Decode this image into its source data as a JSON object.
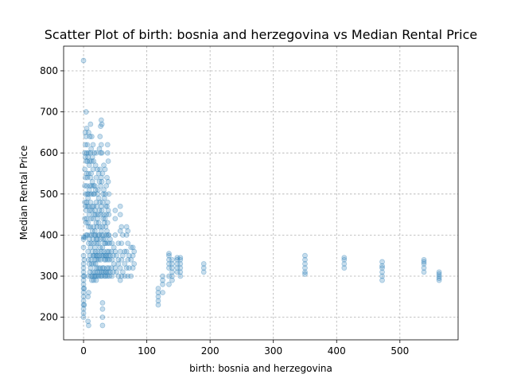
{
  "chart_data": {
    "type": "scatter",
    "title": "Scatter Plot of birth: bosnia and herzegovina vs Median Rental Price",
    "xlabel": "birth: bosnia and herzegovina",
    "ylabel": "Median Rental Price",
    "xlim": [
      -31.5,
      592
    ],
    "ylim": [
      145,
      860
    ],
    "xticks": [
      0,
      100,
      200,
      300,
      400,
      500
    ],
    "yticks": [
      200,
      300,
      400,
      500,
      600,
      700,
      800
    ],
    "grid": true,
    "marker_color": "#1f77b4",
    "marker_alpha": 0.25,
    "points": [
      [
        0,
        825
      ],
      [
        0,
        200
      ],
      [
        0,
        210
      ],
      [
        0,
        220
      ],
      [
        0,
        230
      ],
      [
        0,
        240
      ],
      [
        0,
        250
      ],
      [
        0,
        260
      ],
      [
        0,
        270
      ],
      [
        0,
        280
      ],
      [
        0,
        290
      ],
      [
        0,
        300
      ],
      [
        0,
        310
      ],
      [
        0,
        320
      ],
      [
        0,
        330
      ],
      [
        0,
        350
      ],
      [
        0,
        370
      ],
      [
        0,
        390
      ],
      [
        0,
        395
      ],
      [
        1,
        230
      ],
      [
        1,
        270
      ],
      [
        1,
        300
      ],
      [
        1,
        340
      ],
      [
        2,
        395
      ],
      [
        2,
        440
      ],
      [
        2,
        480
      ],
      [
        2,
        520
      ],
      [
        2,
        560
      ],
      [
        2,
        600
      ],
      [
        3,
        470
      ],
      [
        3,
        500
      ],
      [
        3,
        540
      ],
      [
        3,
        590
      ],
      [
        3,
        650
      ],
      [
        3,
        620
      ],
      [
        4,
        400
      ],
      [
        4,
        430
      ],
      [
        4,
        460
      ],
      [
        4,
        580
      ],
      [
        4,
        640
      ],
      [
        4,
        700
      ],
      [
        5,
        440
      ],
      [
        5,
        480
      ],
      [
        5,
        520
      ],
      [
        5,
        550
      ],
      [
        5,
        600
      ],
      [
        5,
        660
      ],
      [
        6,
        400
      ],
      [
        6,
        470
      ],
      [
        6,
        500
      ],
      [
        6,
        540
      ],
      [
        6,
        580
      ],
      [
        6,
        620
      ],
      [
        7,
        190
      ],
      [
        7,
        250
      ],
      [
        7,
        360
      ],
      [
        7,
        430
      ],
      [
        7,
        490
      ],
      [
        7,
        590
      ],
      [
        8,
        180
      ],
      [
        8,
        260
      ],
      [
        8,
        300
      ],
      [
        8,
        340
      ],
      [
        8,
        380
      ],
      [
        8,
        420
      ],
      [
        8,
        470
      ],
      [
        8,
        500
      ],
      [
        8,
        550
      ],
      [
        8,
        600
      ],
      [
        8,
        650
      ],
      [
        9,
        330
      ],
      [
        9,
        390
      ],
      [
        9,
        450
      ],
      [
        9,
        510
      ],
      [
        9,
        570
      ],
      [
        10,
        310
      ],
      [
        10,
        350
      ],
      [
        10,
        400
      ],
      [
        10,
        460
      ],
      [
        10,
        520
      ],
      [
        10,
        580
      ],
      [
        10,
        640
      ],
      [
        11,
        320
      ],
      [
        11,
        370
      ],
      [
        11,
        420
      ],
      [
        11,
        480
      ],
      [
        11,
        540
      ],
      [
        11,
        600
      ],
      [
        11,
        670
      ],
      [
        12,
        300
      ],
      [
        12,
        340
      ],
      [
        12,
        380
      ],
      [
        12,
        440
      ],
      [
        12,
        500
      ],
      [
        12,
        550
      ],
      [
        12,
        610
      ],
      [
        13,
        290
      ],
      [
        13,
        330
      ],
      [
        13,
        400
      ],
      [
        13,
        460
      ],
      [
        13,
        520
      ],
      [
        13,
        580
      ],
      [
        13,
        640
      ],
      [
        14,
        300
      ],
      [
        14,
        360
      ],
      [
        14,
        410
      ],
      [
        14,
        470
      ],
      [
        14,
        530
      ],
      [
        14,
        590
      ],
      [
        15,
        310
      ],
      [
        15,
        350
      ],
      [
        15,
        390
      ],
      [
        15,
        440
      ],
      [
        15,
        500
      ],
      [
        15,
        560
      ],
      [
        15,
        620
      ],
      [
        16,
        290
      ],
      [
        16,
        330
      ],
      [
        16,
        380
      ],
      [
        16,
        420
      ],
      [
        16,
        470
      ],
      [
        16,
        520
      ],
      [
        16,
        580
      ],
      [
        17,
        300
      ],
      [
        17,
        350
      ],
      [
        17,
        400
      ],
      [
        17,
        450
      ],
      [
        17,
        500
      ],
      [
        17,
        600
      ],
      [
        18,
        310
      ],
      [
        18,
        340
      ],
      [
        18,
        370
      ],
      [
        18,
        410
      ],
      [
        18,
        460
      ],
      [
        18,
        520
      ],
      [
        19,
        300
      ],
      [
        19,
        330
      ],
      [
        19,
        360
      ],
      [
        19,
        400
      ],
      [
        19,
        450
      ],
      [
        19,
        510
      ],
      [
        19,
        570
      ],
      [
        20,
        290
      ],
      [
        20,
        320
      ],
      [
        20,
        350
      ],
      [
        20,
        390
      ],
      [
        20,
        430
      ],
      [
        20,
        480
      ],
      [
        20,
        540
      ],
      [
        20,
        600
      ],
      [
        21,
        300
      ],
      [
        21,
        340
      ],
      [
        21,
        380
      ],
      [
        21,
        420
      ],
      [
        21,
        470
      ],
      [
        22,
        310
      ],
      [
        22,
        350
      ],
      [
        22,
        390
      ],
      [
        22,
        440
      ],
      [
        22,
        500
      ],
      [
        22,
        560
      ],
      [
        23,
        320
      ],
      [
        23,
        360
      ],
      [
        23,
        400
      ],
      [
        23,
        450
      ],
      [
        23,
        510
      ],
      [
        24,
        300
      ],
      [
        24,
        340
      ],
      [
        24,
        380
      ],
      [
        24,
        430
      ],
      [
        24,
        490
      ],
      [
        24,
        550
      ],
      [
        25,
        310
      ],
      [
        25,
        350
      ],
      [
        25,
        400
      ],
      [
        25,
        460
      ],
      [
        25,
        530
      ],
      [
        25,
        610
      ],
      [
        26,
        320
      ],
      [
        26,
        370
      ],
      [
        26,
        420
      ],
      [
        26,
        480
      ],
      [
        26,
        560
      ],
      [
        26,
        640
      ],
      [
        27,
        300
      ],
      [
        27,
        340
      ],
      [
        27,
        390
      ],
      [
        27,
        450
      ],
      [
        27,
        520
      ],
      [
        27,
        600
      ],
      [
        27,
        665
      ],
      [
        28,
        310
      ],
      [
        28,
        360
      ],
      [
        28,
        410
      ],
      [
        28,
        470
      ],
      [
        28,
        540
      ],
      [
        28,
        620
      ],
      [
        28,
        680
      ],
      [
        29,
        300
      ],
      [
        29,
        350
      ],
      [
        29,
        400
      ],
      [
        29,
        460
      ],
      [
        29,
        530
      ],
      [
        29,
        600
      ],
      [
        29,
        670
      ],
      [
        30,
        180
      ],
      [
        30,
        200
      ],
      [
        30,
        220
      ],
      [
        30,
        235
      ],
      [
        30,
        320
      ],
      [
        30,
        370
      ],
      [
        30,
        420
      ],
      [
        30,
        480
      ],
      [
        30,
        550
      ],
      [
        31,
        310
      ],
      [
        31,
        350
      ],
      [
        31,
        390
      ],
      [
        31,
        440
      ],
      [
        31,
        500
      ],
      [
        32,
        320
      ],
      [
        32,
        360
      ],
      [
        32,
        400
      ],
      [
        32,
        450
      ],
      [
        32,
        510
      ],
      [
        32,
        570
      ],
      [
        33,
        300
      ],
      [
        33,
        340
      ],
      [
        33,
        380
      ],
      [
        33,
        430
      ],
      [
        33,
        490
      ],
      [
        34,
        310
      ],
      [
        34,
        350
      ],
      [
        34,
        390
      ],
      [
        34,
        440
      ],
      [
        34,
        500
      ],
      [
        34,
        560
      ],
      [
        35,
        300
      ],
      [
        35,
        340
      ],
      [
        35,
        380
      ],
      [
        35,
        420
      ],
      [
        35,
        470
      ],
      [
        36,
        310
      ],
      [
        36,
        350
      ],
      [
        36,
        400
      ],
      [
        36,
        450
      ],
      [
        36,
        520
      ],
      [
        37,
        320
      ],
      [
        37,
        360
      ],
      [
        37,
        410
      ],
      [
        37,
        470
      ],
      [
        37,
        540
      ],
      [
        38,
        300
      ],
      [
        38,
        340
      ],
      [
        38,
        380
      ],
      [
        38,
        430
      ],
      [
        38,
        480
      ],
      [
        38,
        600
      ],
      [
        38,
        620
      ],
      [
        39,
        310
      ],
      [
        39,
        350
      ],
      [
        39,
        400
      ],
      [
        39,
        460
      ],
      [
        39,
        530
      ],
      [
        39,
        580
      ],
      [
        40,
        320
      ],
      [
        40,
        360
      ],
      [
        40,
        400
      ],
      [
        40,
        450
      ],
      [
        40,
        500
      ],
      [
        41,
        300
      ],
      [
        41,
        340
      ],
      [
        41,
        380
      ],
      [
        42,
        310
      ],
      [
        42,
        350
      ],
      [
        42,
        390
      ],
      [
        44,
        320
      ],
      [
        44,
        360
      ],
      [
        45,
        300
      ],
      [
        45,
        340
      ],
      [
        45,
        380
      ],
      [
        47,
        310
      ],
      [
        47,
        350
      ],
      [
        48,
        330
      ],
      [
        48,
        370
      ],
      [
        50,
        320
      ],
      [
        50,
        360
      ],
      [
        50,
        400
      ],
      [
        50,
        440
      ],
      [
        50,
        460
      ],
      [
        52,
        310
      ],
      [
        52,
        350
      ],
      [
        55,
        300
      ],
      [
        55,
        330
      ],
      [
        55,
        340
      ],
      [
        55,
        380
      ],
      [
        58,
        290
      ],
      [
        58,
        320
      ],
      [
        58,
        360
      ],
      [
        58,
        410
      ],
      [
        58,
        450
      ],
      [
        58,
        470
      ],
      [
        60,
        300
      ],
      [
        60,
        340
      ],
      [
        60,
        380
      ],
      [
        60,
        420
      ],
      [
        62,
        310
      ],
      [
        62,
        350
      ],
      [
        62,
        400
      ],
      [
        65,
        300
      ],
      [
        65,
        330
      ],
      [
        65,
        360
      ],
      [
        68,
        320
      ],
      [
        68,
        360
      ],
      [
        68,
        400
      ],
      [
        68,
        420
      ],
      [
        70,
        300
      ],
      [
        70,
        340
      ],
      [
        70,
        380
      ],
      [
        70,
        410
      ],
      [
        72,
        320
      ],
      [
        72,
        350
      ],
      [
        75,
        300
      ],
      [
        75,
        340
      ],
      [
        75,
        370
      ],
      [
        78,
        320
      ],
      [
        78,
        350
      ],
      [
        78,
        370
      ],
      [
        80,
        330
      ],
      [
        80,
        360
      ],
      [
        118,
        230
      ],
      [
        118,
        240
      ],
      [
        118,
        250
      ],
      [
        118,
        260
      ],
      [
        118,
        270
      ],
      [
        125,
        260
      ],
      [
        125,
        280
      ],
      [
        125,
        290
      ],
      [
        125,
        300
      ],
      [
        135,
        280
      ],
      [
        135,
        300
      ],
      [
        135,
        320
      ],
      [
        135,
        330
      ],
      [
        135,
        340
      ],
      [
        135,
        350
      ],
      [
        135,
        355
      ],
      [
        140,
        290
      ],
      [
        140,
        300
      ],
      [
        140,
        310
      ],
      [
        140,
        320
      ],
      [
        140,
        330
      ],
      [
        140,
        340
      ],
      [
        148,
        310
      ],
      [
        148,
        320
      ],
      [
        148,
        330
      ],
      [
        148,
        340
      ],
      [
        148,
        345
      ],
      [
        153,
        300
      ],
      [
        153,
        310
      ],
      [
        153,
        320
      ],
      [
        153,
        330
      ],
      [
        153,
        340
      ],
      [
        153,
        345
      ],
      [
        190,
        310
      ],
      [
        190,
        320
      ],
      [
        190,
        330
      ],
      [
        350,
        305
      ],
      [
        350,
        310
      ],
      [
        350,
        320
      ],
      [
        350,
        330
      ],
      [
        350,
        340
      ],
      [
        350,
        350
      ],
      [
        412,
        320
      ],
      [
        412,
        330
      ],
      [
        412,
        340
      ],
      [
        412,
        345
      ],
      [
        472,
        290
      ],
      [
        472,
        300
      ],
      [
        472,
        310
      ],
      [
        472,
        320
      ],
      [
        472,
        325
      ],
      [
        472,
        335
      ],
      [
        538,
        310
      ],
      [
        538,
        320
      ],
      [
        538,
        330
      ],
      [
        538,
        335
      ],
      [
        538,
        340
      ],
      [
        562,
        290
      ],
      [
        562,
        295
      ],
      [
        562,
        300
      ],
      [
        562,
        305
      ],
      [
        562,
        310
      ]
    ]
  }
}
